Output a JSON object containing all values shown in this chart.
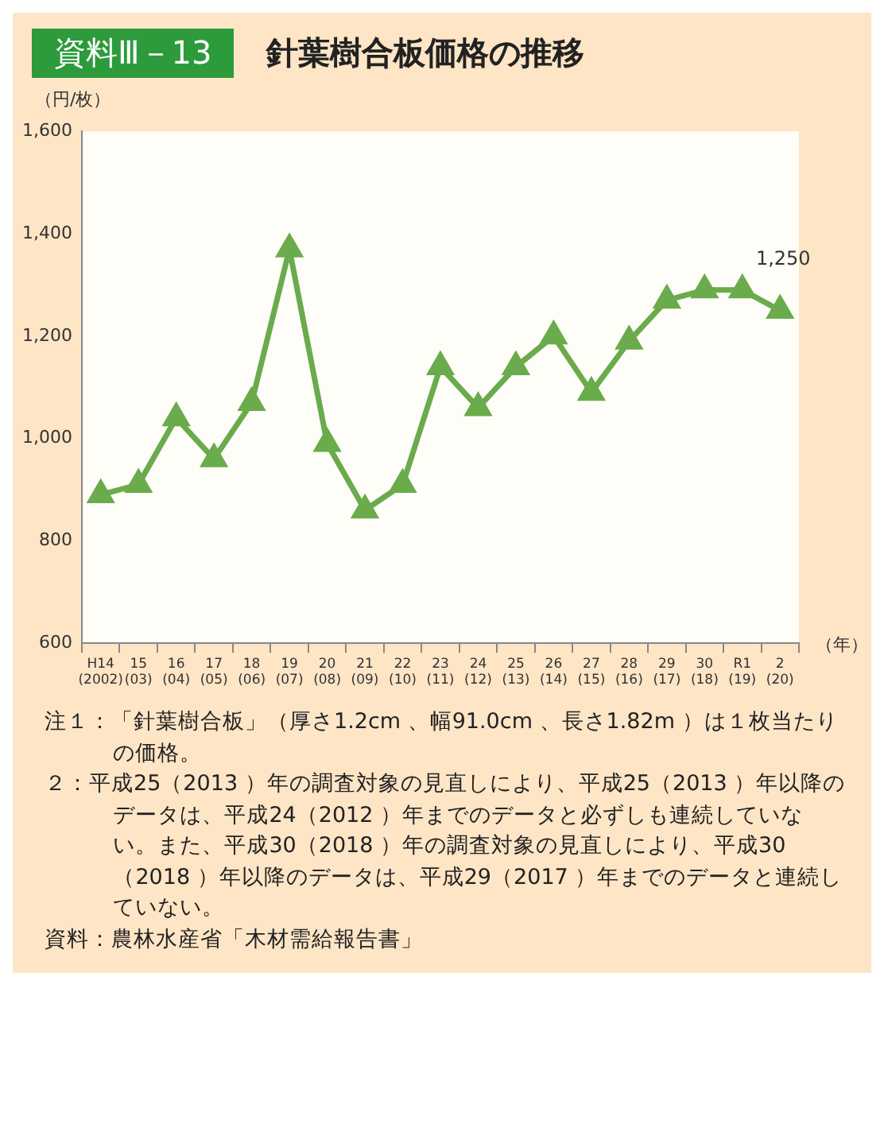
{
  "chart_data": {
    "type": "line",
    "subtitle": "資料Ⅲ－13",
    "title": "針葉樹合板価格の推移",
    "ylabel": "（円/枚）",
    "xlabel": "（年）",
    "categories": [
      "H14\n(2002)",
      "15\n(03)",
      "16\n(04)",
      "17\n(05)",
      "18\n(06)",
      "19\n(07)",
      "20\n(08)",
      "21\n(09)",
      "22\n(10)",
      "23\n(11)",
      "24\n(12)",
      "25\n(13)",
      "26\n(14)",
      "27\n(15)",
      "28\n(16)",
      "29\n(17)",
      "30\n(18)",
      "R1\n(19)",
      "2\n(20)"
    ],
    "series": [
      {
        "color": "#6aab4c",
        "values": [
          890,
          910,
          1040,
          960,
          1070,
          1370,
          990,
          860,
          910,
          1140,
          1060,
          1140,
          1200,
          1090,
          1190,
          1270,
          1290,
          1290,
          1250
        ]
      }
    ],
    "ylim": [
      600,
      1600
    ],
    "yticks": [
      {
        "value": 600,
        "label": "600"
      },
      {
        "value": 800,
        "label": "800"
      },
      {
        "value": 1000,
        "label": "1,000"
      },
      {
        "value": 1200,
        "label": "1,200"
      },
      {
        "value": 1400,
        "label": "1,400"
      },
      {
        "value": 1600,
        "label": "1,600"
      }
    ],
    "grid": false,
    "legend": false,
    "marker": "triangle",
    "line_style": "solid",
    "annotations": [
      {
        "text": "1,250",
        "x": "2\n(20)",
        "y": 1250
      },
      "注１：「針葉樹合板」（厚さ1.2cm 、幅91.0cm 、長さ1.82m ）は１枚当たりの価格。",
      "２：平成25（2013 ）年の調査対象の見直しにより、平成25（2013 ）年以降のデータは、平成24（2012 ）年までのデータと必ずしも連続していない。また、平成30（2018 ）年の調査対象の見直しにより、平成30（2018 ）年以降のデータは、平成29（2017 ）年までのデータと連続していない。",
      "資料：農林水産省「木材需給報告書」"
    ]
  }
}
